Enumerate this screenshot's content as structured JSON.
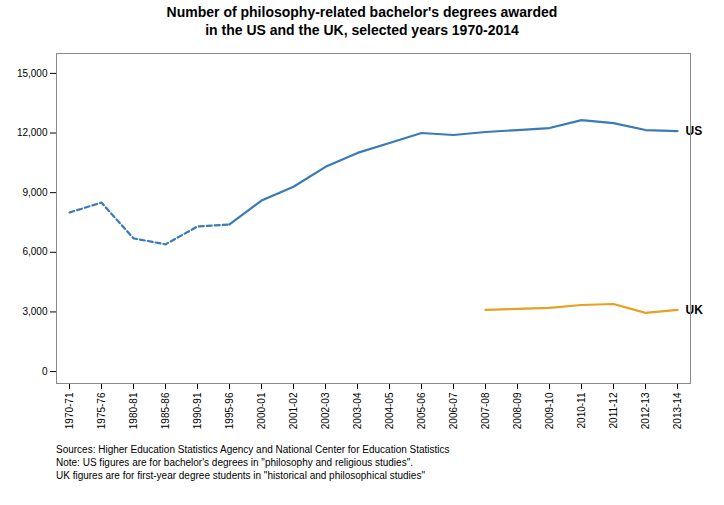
{
  "chart_data": {
    "type": "line",
    "title": "Number of philosophy-related bachelor's degrees awarded\nin the US and the UK, selected years 1970-2014",
    "caption": "Sources: Higher Education Statistics Agency and National Center for Education Statistics\nNote: US figures are for bachelor's degrees in \"philosophy and religious studies\".\nUK figures are for first-year degree students in \"historical and philosophical studies\"",
    "categories": [
      "1970-71",
      "1975-76",
      "1980-81",
      "1985-86",
      "1990-91",
      "1995-96",
      "2000-01",
      "2001-02",
      "2002-03",
      "2003-04",
      "2004-05",
      "2005-06",
      "2006-07",
      "2007-08",
      "2008-09",
      "2009-10",
      "2010-11",
      "2011-12",
      "2012-13",
      "2013-14"
    ],
    "series": [
      {
        "name": "US",
        "color": "#3a7ab8",
        "line_style": "dashed",
        "values": [
          8000,
          8500,
          6700,
          6400,
          7300,
          7400,
          null,
          null,
          null,
          null,
          null,
          null,
          null,
          null,
          null,
          null,
          null,
          null,
          null,
          null
        ]
      },
      {
        "name": "US",
        "color": "#3a7ab8",
        "line_style": "solid",
        "values": [
          null,
          null,
          null,
          null,
          null,
          7400,
          8600,
          9300,
          10300,
          11000,
          11500,
          12000,
          11900,
          12050,
          12150,
          12250,
          12650,
          12500,
          12150,
          12100
        ]
      },
      {
        "name": "UK",
        "color": "#e8a020",
        "line_style": "solid",
        "values": [
          null,
          null,
          null,
          null,
          null,
          null,
          null,
          null,
          null,
          null,
          null,
          null,
          null,
          3100,
          3150,
          3200,
          3350,
          3400,
          2950,
          3100
        ]
      }
    ],
    "ylim": [
      -600,
      16000
    ],
    "yticks": [
      0,
      {
        "value": 3000,
        "label": "3,000"
      },
      {
        "value": 6000,
        "label": "6,000"
      },
      {
        "value": 9000,
        "label": "9,000"
      },
      {
        "value": 12000,
        "label": "12,000"
      },
      {
        "value": 15000,
        "label": "15,000"
      }
    ],
    "grid": false
  }
}
